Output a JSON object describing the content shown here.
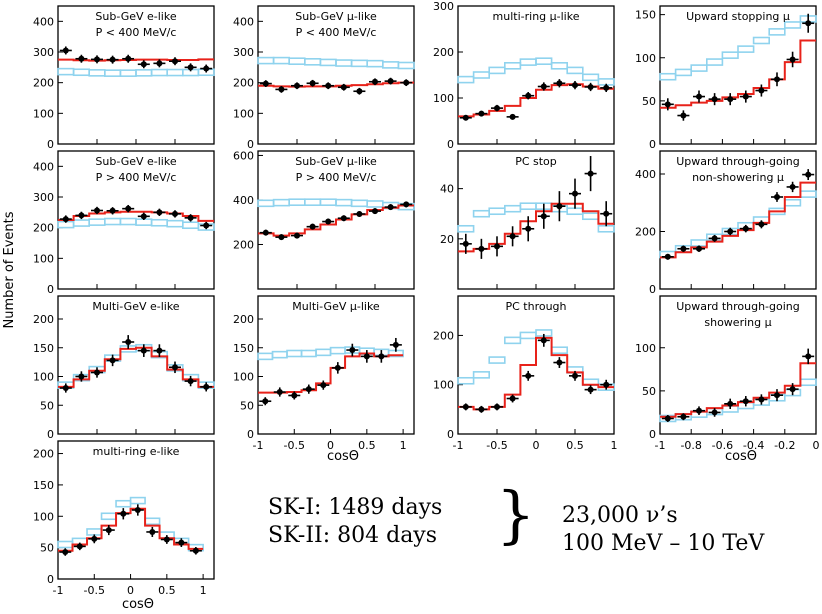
{
  "figure": {
    "ylabel": "Number of Events",
    "xlabel": "cosΘ",
    "summary_line1": "SK-I: 1489 days",
    "summary_line2": "SK-II: 804 days",
    "brace": "}",
    "events_line1": "23,000 ν’s",
    "events_line2": "100 MeV – 10 TeV"
  },
  "colors": {
    "data": "#000000",
    "mc_osc": "#e8221a",
    "mc_noosc": "#8fd3ee"
  },
  "chart_data": [
    {
      "id": "p1",
      "type": "histogram",
      "title": [
        "Sub-GeV e-like",
        "P < 400 MeV/c"
      ],
      "xlim": [
        -1,
        1
      ],
      "ylim": [
        0,
        450
      ],
      "yticks": [
        0,
        100,
        200,
        300,
        400
      ],
      "data": [
        305,
        278,
        276,
        275,
        278,
        260,
        263,
        270,
        250,
        246
      ],
      "err": [
        13,
        13,
        13,
        13,
        13,
        13,
        13,
        13,
        13,
        13
      ],
      "mc_osc": [
        275,
        273,
        272,
        273,
        274,
        275,
        275,
        274,
        274,
        276
      ],
      "mc_noosc": [
        236,
        234,
        232,
        231,
        231,
        232,
        233,
        233,
        233,
        234
      ]
    },
    {
      "id": "p2",
      "type": "histogram",
      "title": [
        "Sub-GeV μ-like",
        "P < 400 MeV/c"
      ],
      "xlim": [
        -1,
        1
      ],
      "ylim": [
        0,
        450
      ],
      "yticks": [
        0,
        100,
        200,
        300,
        400
      ],
      "data": [
        197,
        178,
        190,
        198,
        190,
        185,
        172,
        203,
        205,
        200
      ],
      "err": [
        11,
        11,
        11,
        11,
        11,
        11,
        11,
        11,
        11,
        11
      ],
      "mc_osc": [
        190,
        188,
        187,
        188,
        188,
        190,
        192,
        195,
        198,
        200
      ],
      "mc_noosc": [
        272,
        272,
        270,
        268,
        266,
        264,
        263,
        262,
        258,
        256
      ]
    },
    {
      "id": "p3",
      "type": "histogram",
      "title": [
        "multi-ring μ-like"
      ],
      "xlim": [
        -1,
        1
      ],
      "ylim": [
        0,
        300
      ],
      "yticks": [
        0,
        100,
        200,
        300
      ],
      "data": [
        57,
        66,
        78,
        59,
        105,
        125,
        132,
        128,
        124,
        122
      ],
      "err": [
        6,
        6,
        7,
        6,
        8,
        9,
        9,
        9,
        9,
        9
      ],
      "mc_osc": [
        60,
        64,
        72,
        83,
        100,
        118,
        128,
        130,
        125,
        120
      ],
      "mc_noosc": [
        140,
        150,
        160,
        170,
        178,
        180,
        170,
        160,
        145,
        135
      ]
    },
    {
      "id": "p4",
      "type": "histogram",
      "title": [
        "Upward stopping μ"
      ],
      "xlim": [
        -1,
        0
      ],
      "ylim": [
        0,
        160
      ],
      "yticks": [
        0,
        50,
        100,
        150
      ],
      "data": [
        46,
        33,
        55,
        52,
        52,
        55,
        62,
        75,
        98,
        140
      ],
      "err": [
        7,
        6,
        7,
        7,
        7,
        7,
        7,
        8,
        9,
        11
      ],
      "mc_osc": [
        42,
        45,
        48,
        50,
        54,
        58,
        65,
        75,
        95,
        120
      ],
      "mc_noosc": [
        78,
        83,
        88,
        95,
        103,
        110,
        120,
        130,
        138,
        145
      ]
    },
    {
      "id": "p5",
      "type": "histogram",
      "title": [
        "Sub-GeV e-like",
        "P > 400 MeV/c"
      ],
      "xlim": [
        -1,
        1
      ],
      "ylim": [
        0,
        450
      ],
      "yticks": [
        0,
        100,
        200,
        300,
        400
      ],
      "data": [
        228,
        240,
        256,
        255,
        262,
        237,
        250,
        245,
        232,
        207
      ],
      "err": [
        12,
        12,
        12,
        12,
        12,
        12,
        12,
        12,
        12,
        12
      ],
      "mc_osc": [
        225,
        238,
        246,
        250,
        252,
        252,
        250,
        246,
        238,
        222
      ],
      "mc_noosc": [
        210,
        215,
        218,
        220,
        220,
        218,
        216,
        213,
        208,
        202
      ]
    },
    {
      "id": "p6",
      "type": "histogram",
      "title": [
        "Sub-GeV μ-like",
        "P > 400 MeV/c"
      ],
      "xlim": [
        -1,
        1
      ],
      "ylim": [
        0,
        620
      ],
      "yticks": [
        200,
        400,
        600
      ],
      "data": [
        253,
        233,
        240,
        280,
        303,
        318,
        337,
        350,
        368,
        380
      ],
      "err": [
        13,
        13,
        13,
        13,
        13,
        13,
        13,
        13,
        13,
        13
      ],
      "mc_osc": [
        250,
        240,
        250,
        268,
        290,
        312,
        335,
        355,
        365,
        375
      ],
      "mc_noosc": [
        385,
        388,
        390,
        390,
        390,
        388,
        385,
        382,
        375,
        370
      ]
    },
    {
      "id": "p7",
      "type": "histogram",
      "title": [
        "PC stop"
      ],
      "xlim": [
        -1,
        1
      ],
      "ylim": [
        0,
        55
      ],
      "yticks": [
        20,
        40
      ],
      "data": [
        18,
        16,
        17,
        21,
        24,
        29,
        33,
        38,
        46,
        30
      ],
      "err": [
        4,
        4,
        4,
        4,
        5,
        5,
        6,
        6,
        7,
        5
      ],
      "mc_osc": [
        15,
        16,
        18,
        22,
        27,
        31,
        34,
        34,
        31,
        26
      ],
      "mc_noosc": [
        24,
        30,
        31,
        32,
        33,
        33,
        32,
        31,
        29,
        24
      ]
    },
    {
      "id": "p8",
      "type": "histogram",
      "title": [
        "Upward through-going",
        "non-showering μ"
      ],
      "xlim": [
        -1,
        0
      ],
      "ylim": [
        0,
        480
      ],
      "yticks": [
        0,
        200,
        400
      ],
      "data": [
        112,
        140,
        140,
        176,
        200,
        210,
        225,
        320,
        355,
        398
      ],
      "err": [
        10,
        11,
        11,
        12,
        13,
        13,
        14,
        17,
        18,
        19
      ],
      "mc_osc": [
        110,
        128,
        145,
        165,
        185,
        205,
        230,
        270,
        320,
        370
      ],
      "mc_noosc": [
        120,
        140,
        160,
        180,
        200,
        220,
        240,
        270,
        300,
        330
      ]
    },
    {
      "id": "p9",
      "type": "histogram",
      "title": [
        "Multi-GeV e-like"
      ],
      "xlim": [
        -1,
        1
      ],
      "ylim": [
        0,
        240
      ],
      "yticks": [
        0,
        50,
        100,
        150,
        200
      ],
      "data": [
        80,
        100,
        107,
        128,
        160,
        145,
        145,
        116,
        92,
        82
      ],
      "err": [
        8,
        9,
        9,
        10,
        12,
        11,
        11,
        10,
        9,
        8
      ],
      "mc_osc": [
        82,
        95,
        110,
        130,
        148,
        150,
        135,
        112,
        95,
        82
      ],
      "mc_noosc": [
        85,
        98,
        112,
        132,
        148,
        150,
        138,
        115,
        98,
        85
      ]
    },
    {
      "id": "p10",
      "type": "histogram",
      "title": [
        "Multi-GeV μ-like"
      ],
      "xlim": [
        -1,
        1.15
      ],
      "ylim": [
        0,
        240
      ],
      "yticks": [
        0,
        50,
        100,
        150,
        200
      ],
      "data": [
        57,
        73,
        67,
        78,
        85,
        115,
        146,
        135,
        135,
        155
      ],
      "err": [
        7,
        8,
        7,
        8,
        8,
        10,
        11,
        11,
        11,
        12
      ],
      "mc_osc": [
        72,
        72,
        73,
        76,
        88,
        115,
        135,
        140,
        135,
        137
      ],
      "mc_noosc": [
        135,
        138,
        140,
        140,
        142,
        145,
        146,
        144,
        142,
        140
      ]
    },
    {
      "id": "p11",
      "type": "histogram",
      "title": [
        "PC through"
      ],
      "xlim": [
        -1,
        1
      ],
      "ylim": [
        0,
        280
      ],
      "yticks": [
        0,
        100,
        200
      ],
      "data": [
        55,
        50,
        55,
        72,
        118,
        190,
        145,
        118,
        90,
        100
      ],
      "err": [
        7,
        7,
        7,
        8,
        10,
        13,
        11,
        10,
        9,
        10
      ],
      "mc_osc": [
        55,
        50,
        55,
        80,
        140,
        195,
        160,
        125,
        100,
        95
      ],
      "mc_noosc": [
        108,
        120,
        150,
        190,
        200,
        205,
        170,
        130,
        105,
        95
      ]
    },
    {
      "id": "p12",
      "type": "histogram",
      "title": [
        "Upward through-going",
        "showering μ"
      ],
      "xlim": [
        -1,
        0
      ],
      "ylim": [
        0,
        160
      ],
      "yticks": [
        0,
        50,
        100
      ],
      "data": [
        18,
        20,
        27,
        25,
        35,
        38,
        40,
        45,
        52,
        90
      ],
      "err": [
        4,
        4,
        5,
        5,
        6,
        6,
        6,
        7,
        7,
        9
      ],
      "mc_osc": [
        20,
        23,
        26,
        30,
        33,
        37,
        42,
        48,
        56,
        82
      ],
      "mc_noosc": [
        18,
        20,
        23,
        26,
        29,
        33,
        37,
        42,
        48,
        60
      ]
    },
    {
      "id": "p13",
      "type": "histogram",
      "title": [
        "multi-ring e-like"
      ],
      "xlim": [
        -1,
        1.15
      ],
      "ylim": [
        0,
        220
      ],
      "yticks": [
        0,
        50,
        100,
        150,
        200
      ],
      "data": [
        43,
        52,
        64,
        78,
        104,
        110,
        75,
        63,
        58,
        45
      ],
      "err": [
        6,
        6,
        7,
        8,
        9,
        9,
        8,
        7,
        7,
        6
      ],
      "mc_osc": [
        45,
        55,
        65,
        85,
        105,
        112,
        85,
        65,
        55,
        48
      ],
      "mc_noosc": [
        55,
        60,
        75,
        100,
        120,
        125,
        92,
        70,
        60,
        50
      ]
    }
  ],
  "axes_ticks": {
    "full": [
      "-1",
      "-0.5",
      "0",
      "0.5",
      "1"
    ],
    "upward": [
      "-1",
      "-0.8",
      "-0.6",
      "-0.4",
      "-0.2",
      "0"
    ]
  }
}
